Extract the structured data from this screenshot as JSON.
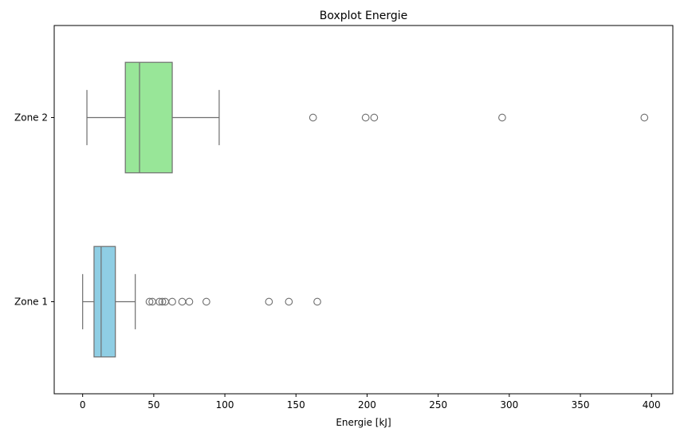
{
  "chart_data": {
    "type": "boxplot",
    "orientation": "horizontal",
    "title": "Boxplot Energie",
    "xlabel": "Energie [kJ]",
    "ylabel": "",
    "xlim": [
      -20,
      415
    ],
    "xticks": [
      0,
      50,
      100,
      150,
      200,
      250,
      300,
      350,
      400
    ],
    "xtick_labels": [
      "0",
      "50",
      "100",
      "150",
      "200",
      "250",
      "300",
      "350",
      "400"
    ],
    "grid": false,
    "series": [
      {
        "name": "Zone 2",
        "color": "#98e698",
        "whisker_low": 3,
        "q1": 30,
        "median": 40,
        "q3": 63,
        "whisker_high": 96,
        "outliers": [
          162,
          199,
          205,
          295,
          395
        ]
      },
      {
        "name": "Zone 1",
        "color": "#8fcee4",
        "whisker_low": 0,
        "q1": 8,
        "median": 13,
        "q3": 23,
        "whisker_high": 37,
        "outliers": [
          47,
          49,
          54,
          56,
          58,
          63,
          70,
          75,
          87,
          131,
          145,
          165
        ]
      }
    ],
    "styles": {
      "line_color": "#6e6e6e",
      "axis_color": "#000000"
    }
  }
}
